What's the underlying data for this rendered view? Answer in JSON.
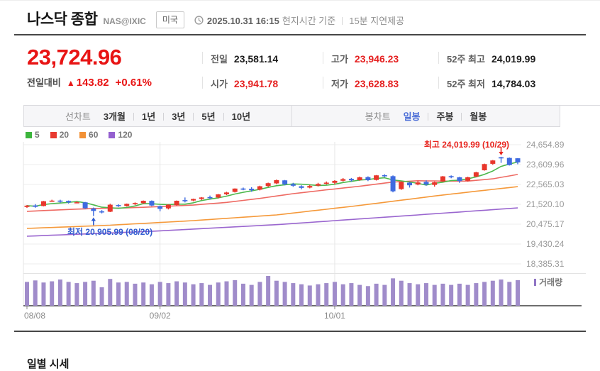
{
  "header": {
    "title": "나스닥 종합",
    "ticker": "NAS@IXIC",
    "country_badge": "미국",
    "datetime": "2025.10.31 16:15",
    "datetime_suffix": "현지시간 기준",
    "delay_notice": "15분 지연제공"
  },
  "quote": {
    "price": "23,724.96",
    "change_label": "전일대비",
    "change_arrow": "▲",
    "change_value": "143.82",
    "change_percent": "+0.61%",
    "fields": [
      {
        "name": "prev-close",
        "label": "전일",
        "value": "23,581.14",
        "value_color": "dark"
      },
      {
        "name": "day-high",
        "label": "고가",
        "value": "23,946.23",
        "value_color": "red"
      },
      {
        "name": "52w-high",
        "label": "52주 최고",
        "value": "24,019.99",
        "value_color": "dark"
      },
      {
        "name": "open-price",
        "label": "시가",
        "value": "23,941.78",
        "value_color": "red"
      },
      {
        "name": "day-low",
        "label": "저가",
        "value": "23,628.83",
        "value_color": "red"
      },
      {
        "name": "52w-low",
        "label": "52주 최저",
        "value": "14,784.03",
        "value_color": "dark"
      }
    ]
  },
  "toolbar": {
    "line_label": "선차트",
    "line_options": [
      "3개월",
      "1년",
      "3년",
      "5년",
      "10년"
    ],
    "candle_label": "봉차트",
    "candle_options": [
      "일봉",
      "주봉",
      "월봉"
    ],
    "selected": "일봉"
  },
  "legend": [
    {
      "label": "5",
      "color": "#3cb53c"
    },
    {
      "label": "20",
      "color": "#e83a30"
    },
    {
      "label": "60",
      "color": "#f29136"
    },
    {
      "label": "120",
      "color": "#9460cf"
    }
  ],
  "volume_legend": "거래량",
  "section_title": "일별 시세",
  "colors": {
    "up": "#e8362b",
    "down": "#3f6be0",
    "ma5": "#4cb84c",
    "ma20": "#ee6a63",
    "ma60": "#f5993a",
    "ma120": "#9a66cf",
    "volume_bar": "#a violet",
    "volume_bar_fill": "#a08cca",
    "grid": "#ececec",
    "vgrid": "#e6e6e6",
    "axis_text": "#9a9a9a",
    "baseline": "#6e6e6e",
    "anno_high": "#e8251f",
    "anno_low": "#2f5bd0"
  },
  "chart_data": {
    "type": "candlestick",
    "title": "나스닥 종합 일봉 차트 (3개월)",
    "y_ticks": [
      "24,654.89",
      "23,609.96",
      "22,565.03",
      "21,520.10",
      "20,475.17",
      "19,430.24",
      "18,385.31"
    ],
    "y_tick_values": [
      24654.89,
      23609.96,
      22565.03,
      21520.1,
      20475.17,
      19430.24,
      18385.31
    ],
    "x_ticks": [
      {
        "label": "08/08",
        "index": 0
      },
      {
        "label": "09/02",
        "index": 16
      },
      {
        "label": "10/01",
        "index": 37
      }
    ],
    "annotations": {
      "high": {
        "text": "최고 24,019.99 (10/29)",
        "index": 57,
        "value": 24019.99
      },
      "low": {
        "text": "최저 20,905.99 (08/20)",
        "index": 8,
        "value": 20905.99
      }
    },
    "candle_columns": [
      "date",
      "open",
      "high",
      "low",
      "close"
    ],
    "candles": [
      [
        "08/08",
        21380,
        21480,
        21330,
        21450
      ],
      [
        "08/11",
        21460,
        21530,
        21340,
        21385
      ],
      [
        "08/12",
        21430,
        21700,
        21410,
        21681
      ],
      [
        "08/13",
        21690,
        21760,
        21650,
        21713
      ],
      [
        "08/14",
        21715,
        21760,
        21600,
        21710
      ],
      [
        "08/15",
        21700,
        21720,
        21560,
        21623
      ],
      [
        "08/18",
        21610,
        21680,
        21575,
        21629
      ],
      [
        "08/19",
        21625,
        21645,
        21280,
        21314
      ],
      [
        "08/20",
        21300,
        21350,
        20905.99,
        21172
      ],
      [
        "08/21",
        21150,
        21215,
        21040,
        21100
      ],
      [
        "08/22",
        21130,
        21550,
        21110,
        21497
      ],
      [
        "08/25",
        21480,
        21520,
        21380,
        21449
      ],
      [
        "08/26",
        21430,
        21560,
        21400,
        21544
      ],
      [
        "08/27",
        21540,
        21620,
        21480,
        21590
      ],
      [
        "08/28",
        21580,
        21720,
        21550,
        21705
      ],
      [
        "08/29",
        21700,
        21725,
        21420,
        21456
      ],
      [
        "09/02",
        21420,
        21455,
        21150,
        21280
      ],
      [
        "09/03",
        21305,
        21520,
        21250,
        21498
      ],
      [
        "09/04",
        21480,
        21720,
        21455,
        21707
      ],
      [
        "09/05",
        21740,
        21880,
        21620,
        21700
      ],
      [
        "09/08",
        21720,
        21820,
        21680,
        21799
      ],
      [
        "09/09",
        21805,
        21900,
        21740,
        21879
      ],
      [
        "09/10",
        21900,
        21980,
        21780,
        21886
      ],
      [
        "09/11",
        21880,
        22060,
        21830,
        22043
      ],
      [
        "09/12",
        22050,
        22180,
        22000,
        22141
      ],
      [
        "09/15",
        22170,
        22360,
        22140,
        22348
      ],
      [
        "09/16",
        22350,
        22400,
        22260,
        22333
      ],
      [
        "09/17",
        22340,
        22420,
        22180,
        22261
      ],
      [
        "09/18",
        22290,
        22500,
        22250,
        22470
      ],
      [
        "09/19",
        22480,
        22660,
        22430,
        22631
      ],
      [
        "09/22",
        22620,
        22820,
        22580,
        22789
      ],
      [
        "09/23",
        22780,
        22800,
        22520,
        22573
      ],
      [
        "09/24",
        22580,
        22650,
        22440,
        22497
      ],
      [
        "09/25",
        22470,
        22520,
        22310,
        22384
      ],
      [
        "09/26",
        22400,
        22540,
        22360,
        22484
      ],
      [
        "09/29",
        22500,
        22650,
        22460,
        22591
      ],
      [
        "09/30",
        22600,
        22720,
        22560,
        22660
      ],
      [
        "10/01",
        22650,
        22790,
        22560,
        22755
      ],
      [
        "10/02",
        22760,
        22900,
        22720,
        22844
      ],
      [
        "10/03",
        22860,
        22905,
        22710,
        22780
      ],
      [
        "10/06",
        22790,
        22980,
        22760,
        22941
      ],
      [
        "10/07",
        22950,
        22990,
        22740,
        22788
      ],
      [
        "10/08",
        22800,
        23060,
        22770,
        23043
      ],
      [
        "10/09",
        23050,
        23100,
        22950,
        23024
      ],
      [
        "10/10",
        23000,
        23040,
        22150,
        22204
      ],
      [
        "10/13",
        22320,
        22720,
        22280,
        22694
      ],
      [
        "10/14",
        22660,
        22700,
        22400,
        22521
      ],
      [
        "10/15",
        22560,
        22760,
        22520,
        22670
      ],
      [
        "10/16",
        22700,
        22780,
        22500,
        22562
      ],
      [
        "10/17",
        22540,
        22710,
        22450,
        22680
      ],
      [
        "10/20",
        22720,
        23010,
        22700,
        22990
      ],
      [
        "10/21",
        23000,
        23040,
        22890,
        22954
      ],
      [
        "10/22",
        22940,
        22965,
        22650,
        22740
      ],
      [
        "10/23",
        22760,
        22970,
        22720,
        22941
      ],
      [
        "10/24",
        22980,
        23230,
        22950,
        23204
      ],
      [
        "10/27",
        23310,
        23660,
        23290,
        23637
      ],
      [
        "10/28",
        23650,
        23850,
        23600,
        23827
      ],
      [
        "10/29",
        23995,
        24019.99,
        23700,
        23958
      ],
      [
        "10/30",
        23960,
        23980,
        23560,
        23581.14
      ],
      [
        "10/31",
        23941.78,
        23946.23,
        23628.83,
        23724.96
      ]
    ],
    "volumes_relative": [
      0.8,
      0.85,
      0.78,
      0.82,
      0.88,
      0.8,
      0.76,
      0.8,
      0.84,
      0.62,
      0.9,
      0.78,
      0.8,
      0.74,
      0.78,
      0.72,
      0.8,
      0.76,
      0.82,
      0.78,
      0.72,
      0.76,
      0.7,
      0.78,
      0.82,
      0.86,
      0.74,
      0.7,
      0.8,
      1.0,
      0.84,
      0.8,
      0.76,
      0.72,
      0.68,
      0.72,
      0.76,
      0.8,
      0.72,
      0.76,
      0.7,
      0.66,
      0.74,
      0.7,
      0.92,
      0.84,
      0.76,
      0.72,
      0.76,
      0.7,
      0.74,
      0.7,
      0.74,
      0.7,
      0.76,
      0.8,
      0.84,
      0.88,
      0.8,
      0.86
    ],
    "ma_anchor_lines": {
      "ma20": [
        [
          0,
          21150
        ],
        [
          4,
          21230
        ],
        [
          8,
          21300
        ],
        [
          12,
          21330
        ],
        [
          16,
          21400
        ],
        [
          20,
          21480
        ],
        [
          24,
          21620
        ],
        [
          28,
          21830
        ],
        [
          32,
          22080
        ],
        [
          36,
          22280
        ],
        [
          40,
          22470
        ],
        [
          44,
          22690
        ],
        [
          47,
          22760
        ],
        [
          50,
          22740
        ],
        [
          53,
          22740
        ],
        [
          56,
          22860
        ],
        [
          59,
          23090
        ]
      ],
      "ma60": [
        [
          0,
          20250
        ],
        [
          10,
          20420
        ],
        [
          20,
          20660
        ],
        [
          30,
          20960
        ],
        [
          40,
          21460
        ],
        [
          50,
          22010
        ],
        [
          59,
          22450
        ]
      ],
      "ma120": [
        [
          0,
          19840
        ],
        [
          15,
          20100
        ],
        [
          30,
          20450
        ],
        [
          45,
          20900
        ],
        [
          59,
          21330
        ]
      ]
    }
  }
}
